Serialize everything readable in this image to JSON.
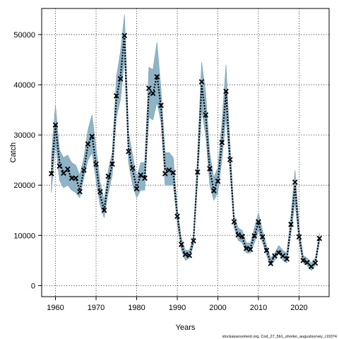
{
  "chart_data": {
    "type": "line",
    "xlabel": "Years",
    "ylabel": "Catch",
    "xlim": [
      1956.6,
      2027.4
    ],
    "ylim": [
      -2200,
      55200
    ],
    "x_ticks": [
      1960,
      1970,
      1980,
      1990,
      2000,
      2010,
      2020
    ],
    "y_ticks": [
      0,
      10000,
      20000,
      30000,
      40000,
      50000
    ],
    "y_tick_labels": [
      "0",
      "10000",
      "20000",
      "30000",
      "40000",
      "50000"
    ],
    "grid": true,
    "footer": "stockassessment.org, Cod_27_5b1_shorter_augustsurvey_r19374",
    "colors": {
      "band": "#8fb4c8",
      "band_stroke": "#7a9fb3",
      "line": "#000000"
    },
    "series": [
      {
        "type": "band",
        "x": [
          1959,
          1960,
          1961,
          1962,
          1963,
          1964,
          1965,
          1966,
          1967,
          1968,
          1969,
          1970,
          1971,
          1972,
          1973,
          1974,
          1975,
          1976,
          1977,
          1978,
          1979,
          1980,
          1981,
          1982,
          1983,
          1984,
          1985,
          1986,
          1987,
          1988,
          1989,
          1990,
          1991,
          1992,
          1993,
          1994,
          1995,
          1996,
          1997,
          1998,
          1999,
          2000,
          2001,
          2002,
          2003,
          2004,
          2005,
          2006,
          2007,
          2008,
          2009,
          2010,
          2011,
          2012,
          2013,
          2014,
          2015,
          2016,
          2017,
          2018,
          2019,
          2020,
          2021,
          2022,
          2023,
          2024,
          2025
        ],
        "lower": [
          18500,
          28500,
          21000,
          19500,
          20000,
          19000,
          18500,
          17500,
          21500,
          25000,
          26500,
          21000,
          16000,
          13500,
          18500,
          22000,
          33500,
          37000,
          45000,
          24500,
          20000,
          17500,
          19000,
          19000,
          33500,
          33000,
          36500,
          32500,
          20000,
          20000,
          20000,
          12500,
          7000,
          5000,
          5500,
          8000,
          20500,
          35000,
          30000,
          20000,
          17000,
          18500,
          25000,
          33500,
          22500,
          11500,
          9000,
          8500,
          6500,
          6500,
          8500,
          11000,
          8500,
          6000,
          4000,
          5000,
          6500,
          5000,
          4500,
          10500,
          16500,
          8500,
          4500,
          4000,
          3000,
          4000,
          8500
        ],
        "upper": [
          26000,
          36000,
          27000,
          25500,
          26000,
          24500,
          24000,
          22000,
          25500,
          31000,
          34000,
          27500,
          20500,
          17000,
          23000,
          26500,
          41500,
          46500,
          54000,
          30500,
          26000,
          21500,
          24500,
          24500,
          43500,
          43000,
          48500,
          39000,
          26500,
          26500,
          25500,
          15500,
          9500,
          7000,
          7000,
          10000,
          26000,
          44500,
          38500,
          26500,
          21500,
          23500,
          32500,
          44000,
          28000,
          14000,
          11500,
          11000,
          8500,
          8500,
          11500,
          14500,
          11000,
          8000,
          5500,
          6500,
          8000,
          7000,
          6500,
          14000,
          23000,
          11500,
          6000,
          5500,
          4500,
          5500,
          10500
        ]
      },
      {
        "name": "",
        "type": "line",
        "x": [
          1959,
          1960,
          1961,
          1962,
          1963,
          1964,
          1965,
          1966,
          1967,
          1968,
          1969,
          1970,
          1971,
          1972,
          1973,
          1974,
          1975,
          1976,
          1977,
          1978,
          1979,
          1980,
          1981,
          1982,
          1983,
          1984,
          1985,
          1986,
          1987,
          1988,
          1989,
          1990,
          1991,
          1992,
          1993,
          1994,
          1995,
          1996,
          1997,
          1998,
          1999,
          2000,
          2001,
          2002,
          2003,
          2004,
          2005,
          2006,
          2007,
          2008,
          2009,
          2010,
          2011,
          2012,
          2013,
          2014,
          2015,
          2016,
          2017,
          2018,
          2019,
          2020,
          2021,
          2022,
          2023,
          2024,
          2025
        ],
        "values": [
          22000,
          32000,
          24500,
          22500,
          23000,
          21500,
          21500,
          19000,
          23000,
          28000,
          30000,
          24000,
          18000,
          15000,
          21000,
          24000,
          37500,
          41500,
          50000,
          27000,
          23000,
          19500,
          22000,
          21500,
          38500,
          38000,
          42000,
          35500,
          23000,
          23000,
          22500,
          14000,
          8000,
          6000,
          6000,
          9000,
          23000,
          40000,
          34000,
          23000,
          19000,
          21000,
          28500,
          38500,
          25000,
          12500,
          10000,
          9500,
          7500,
          7500,
          10000,
          12500,
          9500,
          7000,
          4500,
          6000,
          7000,
          6000,
          5500,
          12000,
          20000,
          10000,
          5000,
          4500,
          3800,
          4500,
          9500
        ]
      },
      {
        "name": "",
        "type": "scatter",
        "marker": "x",
        "x": [
          1959,
          1960,
          1961,
          1962,
          1963,
          1964,
          1965,
          1966,
          1967,
          1968,
          1969,
          1970,
          1971,
          1972,
          1973,
          1974,
          1975,
          1976,
          1977,
          1978,
          1979,
          1980,
          1981,
          1982,
          1983,
          1984,
          1985,
          1986,
          1987,
          1988,
          1989,
          1990,
          1991,
          1992,
          1993,
          1994,
          1995,
          1996,
          1997,
          1998,
          1999,
          2000,
          2001,
          2002,
          2003,
          2004,
          2005,
          2006,
          2007,
          2008,
          2009,
          2010,
          2011,
          2012,
          2013,
          2014,
          2015,
          2016,
          2017,
          2018,
          2019,
          2020,
          2021,
          2022,
          2023,
          2024,
          2025
        ],
        "values": [
          22300,
          32000,
          23800,
          22400,
          23200,
          21400,
          21400,
          18700,
          23000,
          28200,
          29700,
          24200,
          18700,
          15000,
          21800,
          24200,
          37800,
          41200,
          49800,
          26700,
          23400,
          19300,
          22000,
          21400,
          39300,
          38300,
          41600,
          35900,
          22300,
          23000,
          22500,
          13800,
          8200,
          6200,
          6000,
          8900,
          22600,
          40600,
          34000,
          23300,
          18900,
          20800,
          28500,
          38700,
          25100,
          12700,
          10100,
          9800,
          7400,
          7200,
          9900,
          12700,
          9700,
          7000,
          4400,
          5900,
          6500,
          5900,
          5300,
          12200,
          20600,
          9700,
          5000,
          4600,
          3800,
          4500,
          9400
        ]
      }
    ]
  }
}
